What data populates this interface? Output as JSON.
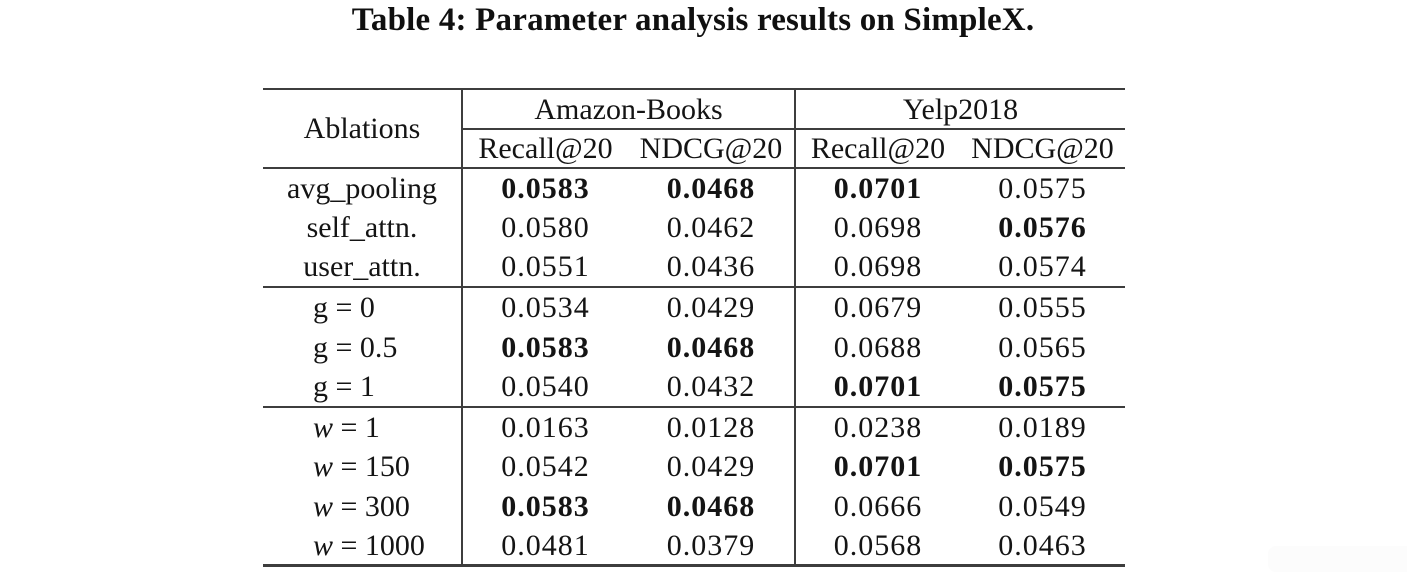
{
  "colors": {
    "background": "#ffffff",
    "text": "#141414",
    "rule": "#3d3d3d"
  },
  "title": "Table 4: Parameter analysis results on SimpleX.",
  "table": {
    "corner_header": "Ablations",
    "col_groups": [
      {
        "label": "Amazon-Books",
        "metrics": [
          "Recall@20",
          "NDCG@20"
        ]
      },
      {
        "label": "Yelp2018",
        "metrics": [
          "Recall@20",
          "NDCG@20"
        ]
      }
    ],
    "row_groups": [
      {
        "rows": [
          {
            "label": "avg_pooling",
            "var_italic": false,
            "values": [
              {
                "v": "0.0583",
                "bold": true
              },
              {
                "v": "0.0468",
                "bold": true
              },
              {
                "v": "0.0701",
                "bold": true
              },
              {
                "v": "0.0575",
                "bold": false
              }
            ]
          },
          {
            "label": "self_attn.",
            "var_italic": false,
            "values": [
              {
                "v": "0.0580",
                "bold": false
              },
              {
                "v": "0.0462",
                "bold": false
              },
              {
                "v": "0.0698",
                "bold": false
              },
              {
                "v": "0.0576",
                "bold": true
              }
            ]
          },
          {
            "label": "user_attn.",
            "var_italic": false,
            "values": [
              {
                "v": "0.0551",
                "bold": false
              },
              {
                "v": "0.0436",
                "bold": false
              },
              {
                "v": "0.0698",
                "bold": false
              },
              {
                "v": "0.0574",
                "bold": false
              }
            ]
          }
        ]
      },
      {
        "rows": [
          {
            "label": "g = 0",
            "var_italic": false,
            "values": [
              {
                "v": "0.0534",
                "bold": false
              },
              {
                "v": "0.0429",
                "bold": false
              },
              {
                "v": "0.0679",
                "bold": false
              },
              {
                "v": "0.0555",
                "bold": false
              }
            ]
          },
          {
            "label": "g = 0.5",
            "var_italic": false,
            "values": [
              {
                "v": "0.0583",
                "bold": true
              },
              {
                "v": "0.0468",
                "bold": true
              },
              {
                "v": "0.0688",
                "bold": false
              },
              {
                "v": "0.0565",
                "bold": false
              }
            ]
          },
          {
            "label": "g = 1",
            "var_italic": false,
            "values": [
              {
                "v": "0.0540",
                "bold": false
              },
              {
                "v": "0.0432",
                "bold": false
              },
              {
                "v": "0.0701",
                "bold": true
              },
              {
                "v": "0.0575",
                "bold": true
              }
            ]
          }
        ]
      },
      {
        "rows": [
          {
            "label": "w = 1",
            "var_italic": true,
            "values": [
              {
                "v": "0.0163",
                "bold": false
              },
              {
                "v": "0.0128",
                "bold": false
              },
              {
                "v": "0.0238",
                "bold": false
              },
              {
                "v": "0.0189",
                "bold": false
              }
            ]
          },
          {
            "label": "w = 150",
            "var_italic": true,
            "values": [
              {
                "v": "0.0542",
                "bold": false
              },
              {
                "v": "0.0429",
                "bold": false
              },
              {
                "v": "0.0701",
                "bold": true
              },
              {
                "v": "0.0575",
                "bold": true
              }
            ]
          },
          {
            "label": "w = 300",
            "var_italic": true,
            "values": [
              {
                "v": "0.0583",
                "bold": true
              },
              {
                "v": "0.0468",
                "bold": true
              },
              {
                "v": "0.0666",
                "bold": false
              },
              {
                "v": "0.0549",
                "bold": false
              }
            ]
          },
          {
            "label": "w = 1000",
            "var_italic": true,
            "values": [
              {
                "v": "0.0481",
                "bold": false
              },
              {
                "v": "0.0379",
                "bold": false
              },
              {
                "v": "0.0568",
                "bold": false
              },
              {
                "v": "0.0463",
                "bold": false
              }
            ]
          }
        ]
      }
    ]
  }
}
